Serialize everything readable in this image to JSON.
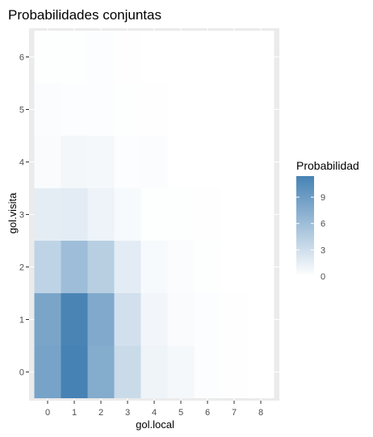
{
  "chart_data": {
    "type": "heatmap",
    "title": "Probabilidades conjuntas",
    "xlabel": "gol.local",
    "ylabel": "gol.visita",
    "x_categories": [
      "0",
      "1",
      "2",
      "3",
      "4",
      "5",
      "6",
      "7",
      "8"
    ],
    "y_categories": [
      "0",
      "1",
      "2",
      "3",
      "4",
      "5",
      "6"
    ],
    "values": [
      [
        8.4,
        11.4,
        7.6,
        3.3,
        1.0,
        0.6,
        0.2,
        0.05,
        0.02
      ],
      [
        8.2,
        11.2,
        7.8,
        2.8,
        0.8,
        0.4,
        0.2,
        0.05,
        0.02
      ],
      [
        4.0,
        6.0,
        4.4,
        1.7,
        0.5,
        0.3,
        0.1,
        0.03,
        0.01
      ],
      [
        1.6,
        1.7,
        1.1,
        0.5,
        0.1,
        0.1,
        0.05,
        0.01,
        0.0
      ],
      [
        0.4,
        0.7,
        0.6,
        0.2,
        0.3,
        0.03,
        0.0,
        0.0,
        0.0
      ],
      [
        0.3,
        0.2,
        0.2,
        0.1,
        0.05,
        0.0,
        0.0,
        0.0,
        0.0
      ],
      [
        0.1,
        0.1,
        0.2,
        0.05,
        0.0,
        0.0,
        0.0,
        0.0,
        0.0
      ]
    ],
    "legend": {
      "title": "Probabilidad",
      "ticks": [
        "9",
        "6",
        "3",
        "0"
      ],
      "tick_values": [
        9,
        6,
        3,
        0
      ],
      "min": 0,
      "max": 11.4,
      "low_color": "#ffffff",
      "high_color": "#4682b4",
      "placement": "right"
    },
    "panel_background": "#ebebeb",
    "grid": true
  }
}
